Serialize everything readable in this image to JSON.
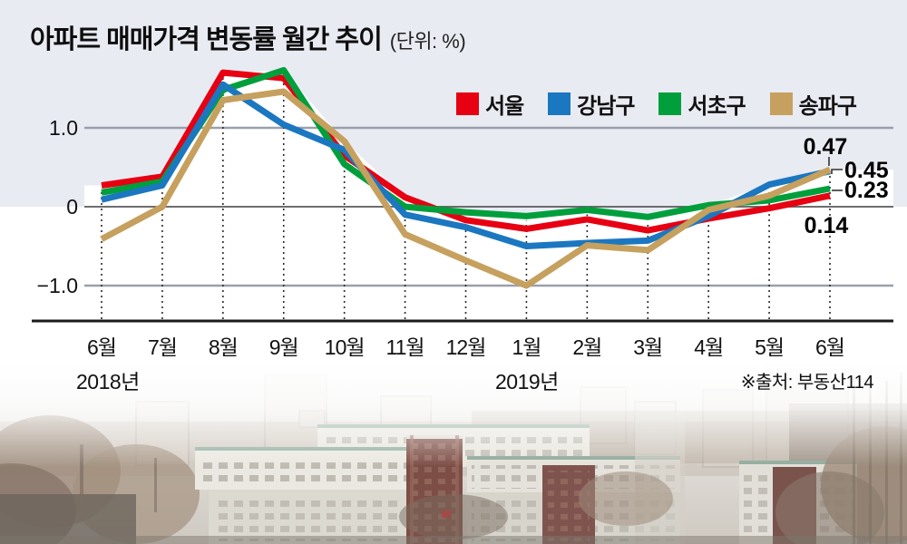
{
  "header": {
    "title": "아파트 매매가격 변동률 월간 추이",
    "unit": "(단위: %)"
  },
  "source_note": "※출처: 부동산114",
  "year_markers": [
    {
      "label": "2018년",
      "month_index": 0
    },
    {
      "label": "2019년",
      "month_index": 7
    }
  ],
  "colors": {
    "background_top": "#e9ebf3",
    "plot_white": "#ffffff",
    "grid": "#9aa0ab",
    "zero_line": "#595959",
    "axis_line": "#1a1a1a",
    "dotted_line": "#2b2b2b",
    "text": "#111111",
    "seoul_red": "#e60012",
    "gangnam_blue": "#1b77c0",
    "seocho_green": "#009f3c",
    "songpa_tan": "#c6a05e"
  },
  "chart_data": {
    "type": "line",
    "title": "아파트 매매가격 변동률 월간 추이",
    "unit": "%",
    "x": [
      "6월",
      "7월",
      "8월",
      "9월",
      "10월",
      "11월",
      "12월",
      "1월",
      "2월",
      "3월",
      "4월",
      "5월",
      "6월"
    ],
    "ylim": [
      -1.4,
      1.9
    ],
    "y_ticks": [
      {
        "label": "1.0",
        "value": 1.0
      },
      {
        "label": "0",
        "value": 0
      },
      {
        "label": "−1.0",
        "value": -1.0
      }
    ],
    "grid": {
      "horizontal": true,
      "vertical": "dotted-per-month"
    },
    "legend_position": "top-right",
    "series": [
      {
        "name": "서울",
        "key": "seoul",
        "color": "#e60012",
        "end_label": "0.14",
        "values": [
          0.27,
          0.38,
          1.7,
          1.63,
          0.65,
          0.12,
          -0.17,
          -0.28,
          -0.16,
          -0.3,
          -0.15,
          -0.02,
          0.14
        ]
      },
      {
        "name": "강남구",
        "key": "gangnam",
        "color": "#1b77c0",
        "end_label": "0.45",
        "values": [
          0.09,
          0.27,
          1.55,
          1.04,
          0.72,
          -0.1,
          -0.26,
          -0.5,
          -0.46,
          -0.43,
          -0.12,
          0.28,
          0.45
        ]
      },
      {
        "name": "서초구",
        "key": "seocho",
        "color": "#009f3c",
        "end_label": "0.23",
        "values": [
          0.18,
          0.32,
          1.48,
          1.73,
          0.54,
          0.0,
          -0.07,
          -0.12,
          -0.04,
          -0.13,
          0.02,
          0.08,
          0.23
        ]
      },
      {
        "name": "송파구",
        "key": "songpa",
        "color": "#c6a05e",
        "end_label": "0.47",
        "values": [
          -0.41,
          0.0,
          1.35,
          1.46,
          0.83,
          -0.35,
          -0.68,
          -1.0,
          -0.49,
          -0.55,
          -0.04,
          0.14,
          0.47
        ]
      }
    ]
  }
}
